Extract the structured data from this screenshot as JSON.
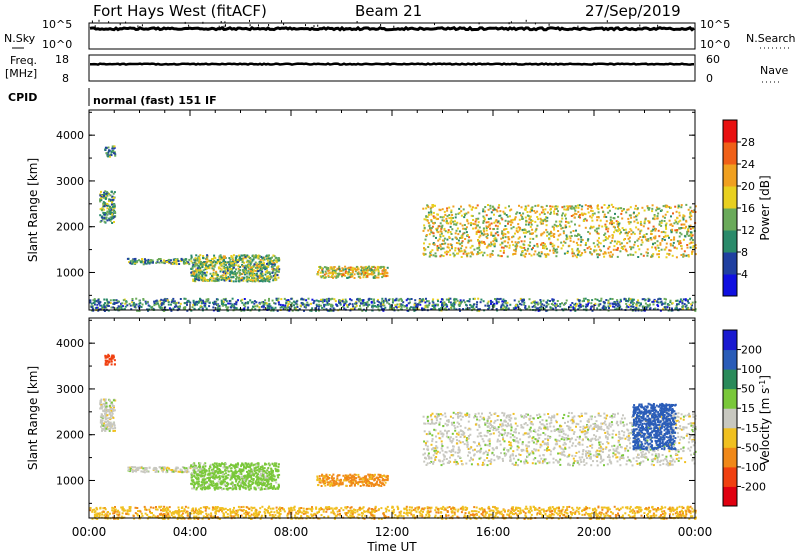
{
  "header": {
    "title": "Fort Hays West (fitACF)",
    "beam": "Beam 21",
    "date": "27/Sep/2019"
  },
  "noise_panel": {
    "left_label": "N.Sky",
    "right_label": "N.Search",
    "left_ticks": [
      "10^5",
      "10^0"
    ],
    "right_ticks": [
      "10^5",
      "10^0"
    ],
    "sky_level": 0.18
  },
  "freq_panel": {
    "left_label_1": "Freq.",
    "left_label_2": "[MHz]",
    "right_label": "Nave",
    "left_ticks": [
      "18",
      "8"
    ],
    "right_ticks": [
      "60",
      "0"
    ],
    "freq_level": 0.35
  },
  "cpid": {
    "label": "CPID",
    "text": "normal (fast) 151 IF"
  },
  "x_axis": {
    "ticks": [
      "00:00",
      "04:00",
      "08:00",
      "12:00",
      "16:00",
      "20:00",
      "00:00"
    ],
    "label": "Time UT",
    "range_hours": [
      0,
      24
    ]
  },
  "y_axis": {
    "label": "Slant Range [km]",
    "ticks": [
      "1000",
      "2000",
      "3000",
      "4000"
    ],
    "range_km": [
      180,
      4550
    ]
  },
  "power_scale": {
    "label": "Power [dB]",
    "ticks": [
      "4",
      "8",
      "12",
      "16",
      "20",
      "24",
      "28"
    ],
    "colors": [
      "#1010e0",
      "#2040a0",
      "#2a8a6a",
      "#6aaa5a",
      "#e8d020",
      "#f0a020",
      "#f06018",
      "#e81010"
    ]
  },
  "velocity_scale": {
    "label": "Velocity [m s",
    "label_sup": "-1",
    "label_end": "]",
    "ticks": [
      "200",
      "100",
      "50",
      "15",
      "-15",
      "-50",
      "-100",
      "-200"
    ],
    "colors": [
      "#1a1ad0",
      "#2a5cb8",
      "#2a8a5a",
      "#7ac83a",
      "#c8c8c0",
      "#f0c020",
      "#f08818",
      "#f04010",
      "#e00010"
    ]
  },
  "chart_data": [
    {
      "type": "heatmap",
      "title": "Power",
      "xlabel": "Time UT",
      "ylabel": "Slant Range [km]",
      "xlim_hours": [
        0,
        24
      ],
      "ylim_km": [
        180,
        4550
      ],
      "colorbar": "Power [dB]",
      "colorbar_range": [
        0,
        30
      ],
      "echo_regions": [
        {
          "t_start": 0.4,
          "t_end": 1.0,
          "range_min": 2100,
          "range_max": 2800,
          "value": 12
        },
        {
          "t_start": 0.6,
          "t_end": 1.0,
          "range_min": 3550,
          "range_max": 3780,
          "value": 10
        },
        {
          "t_start": 1.5,
          "t_end": 4.0,
          "range_min": 1200,
          "range_max": 1320,
          "value": 12
        },
        {
          "t_start": 4.0,
          "t_end": 7.5,
          "range_min": 820,
          "range_max": 1400,
          "value": 14
        },
        {
          "t_start": 9.0,
          "t_end": 11.8,
          "range_min": 900,
          "range_max": 1150,
          "value": 18
        },
        {
          "t_start": 13.2,
          "t_end": 24.0,
          "range_min": 1350,
          "range_max": 2500,
          "value": 18
        },
        {
          "t_start": 0.0,
          "t_end": 24.0,
          "range_min": 180,
          "range_max": 450,
          "value": 10
        }
      ]
    },
    {
      "type": "heatmap",
      "title": "Velocity",
      "xlabel": "Time UT",
      "ylabel": "Slant Range [km]",
      "xlim_hours": [
        0,
        24
      ],
      "ylim_km": [
        180,
        4550
      ],
      "colorbar": "Velocity [m s-1]",
      "colorbar_range": [
        -200,
        200
      ],
      "echo_regions": [
        {
          "t_start": 0.4,
          "t_end": 1.0,
          "range_min": 2100,
          "range_max": 2800,
          "value": 0
        },
        {
          "t_start": 0.6,
          "t_end": 1.0,
          "range_min": 3550,
          "range_max": 3780,
          "value": -150
        },
        {
          "t_start": 1.5,
          "t_end": 4.0,
          "range_min": 1200,
          "range_max": 1320,
          "value": 0
        },
        {
          "t_start": 4.0,
          "t_end": 7.5,
          "range_min": 820,
          "range_max": 1400,
          "value": 30
        },
        {
          "t_start": 9.0,
          "t_end": 11.8,
          "range_min": 900,
          "range_max": 1150,
          "value": -60
        },
        {
          "t_start": 13.2,
          "t_end": 24.0,
          "range_min": 1350,
          "range_max": 2500,
          "value": 0
        },
        {
          "t_start": 21.5,
          "t_end": 23.2,
          "range_min": 1700,
          "range_max": 2700,
          "value": 150
        },
        {
          "t_start": 0.0,
          "t_end": 24.0,
          "range_min": 180,
          "range_max": 450,
          "value": -40
        }
      ]
    }
  ]
}
